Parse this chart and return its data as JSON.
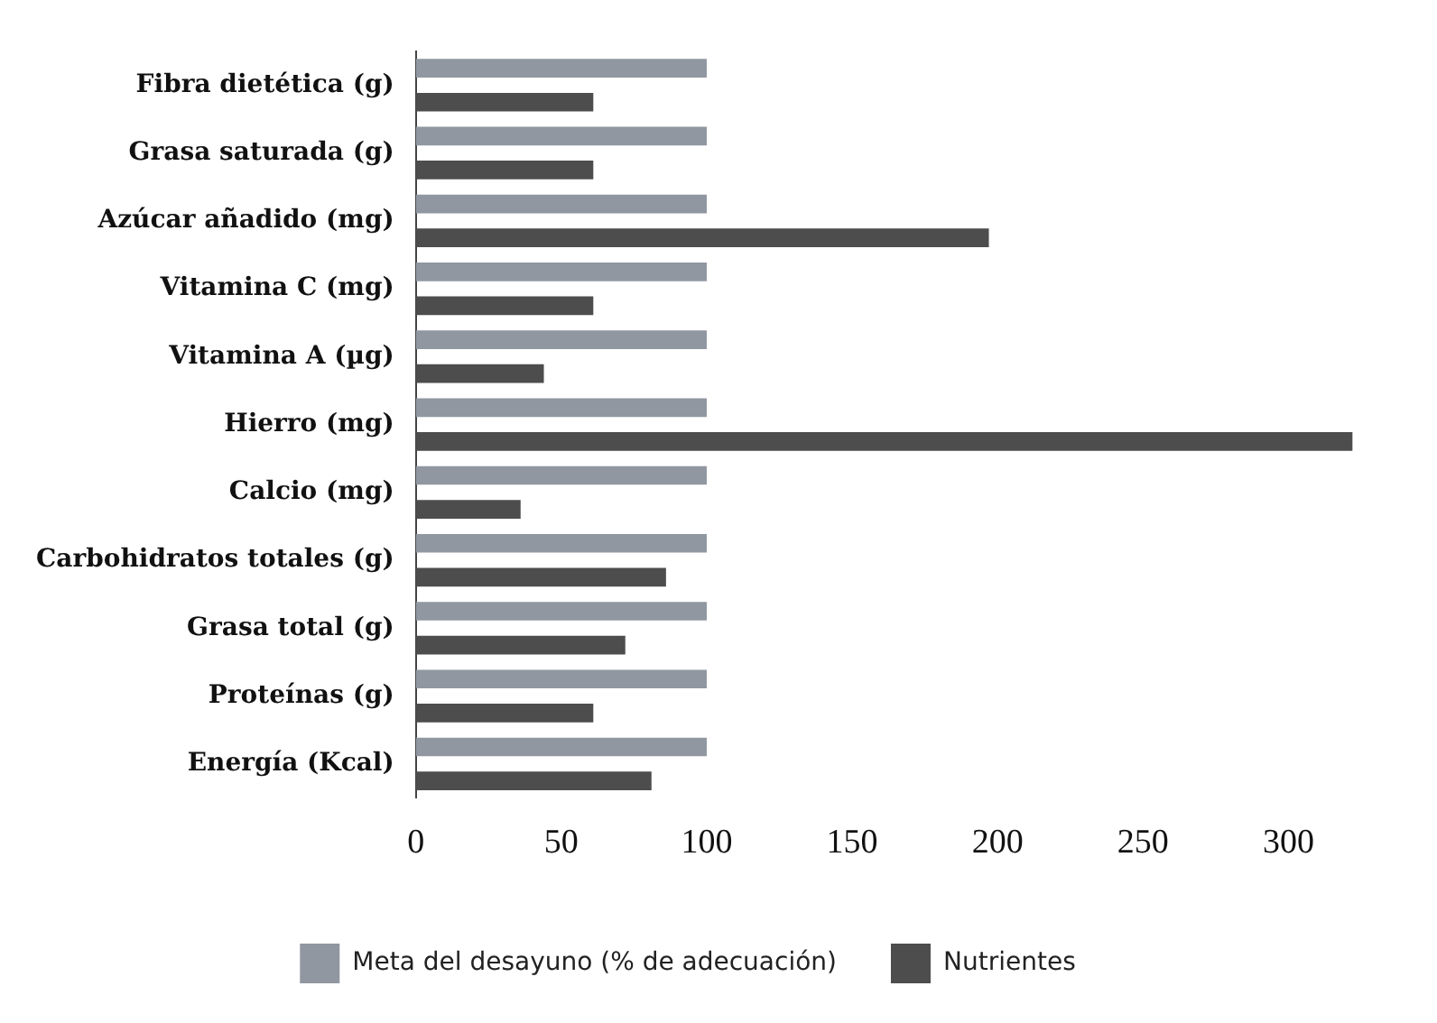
{
  "chart_data": {
    "type": "bar",
    "orientation": "horizontal",
    "categories": [
      "Fibra dietética (g)",
      "Grasa saturada (g)",
      "Azúcar añadido (mg)",
      "Vitamina C (mg)",
      "Vitamina A (µg)",
      "Hierro (mg)",
      "Calcio (mg)",
      "Carbohidratos totales (g)",
      "Grasa total (g)",
      "Proteínas (g)",
      "Energía (Kcal)"
    ],
    "series": [
      {
        "name": "Meta del desayuno (% de adecuación)",
        "color": "#9097a0",
        "values": [
          100,
          100,
          100,
          100,
          100,
          100,
          100,
          100,
          100,
          100,
          100
        ]
      },
      {
        "name": "Nutrientes",
        "color": "#4d4d4d",
        "values": [
          61,
          61,
          197,
          61,
          44,
          322,
          36,
          86,
          72,
          61,
          81
        ]
      }
    ],
    "xlim": [
      0,
      325
    ],
    "xticks": [
      0,
      50,
      100,
      150,
      200,
      250,
      300
    ],
    "grid": false,
    "legend": "bottom"
  }
}
